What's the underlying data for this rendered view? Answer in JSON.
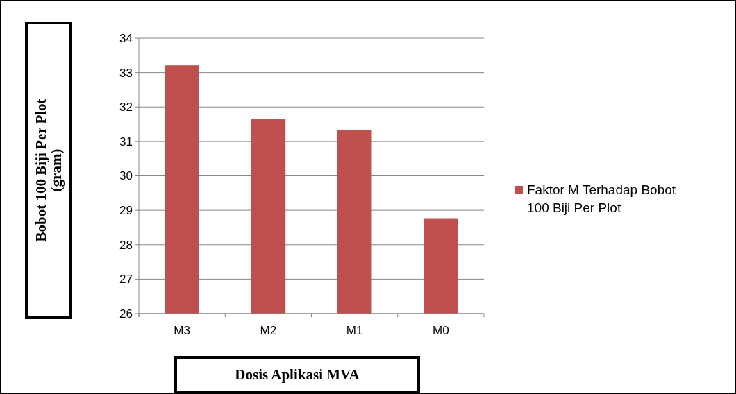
{
  "chart_data": {
    "type": "bar",
    "xlabel": "Dosis Aplikasi MVA",
    "ylabel": "Bobot 100  Biji Per Plot (gram)",
    "categories": [
      "M3",
      "M2",
      "M1",
      "M0"
    ],
    "series": [
      {
        "name": "Faktor M Terhadap Bobot 100 Biji Per Plot",
        "color": "#c0504d",
        "values": [
          33.21,
          31.66,
          31.33,
          28.77
        ]
      }
    ],
    "ylim": [
      26,
      34
    ],
    "yticks": [
      26,
      27,
      28,
      29,
      30,
      31,
      32,
      33,
      34
    ],
    "grid": "y",
    "legend": "right"
  }
}
